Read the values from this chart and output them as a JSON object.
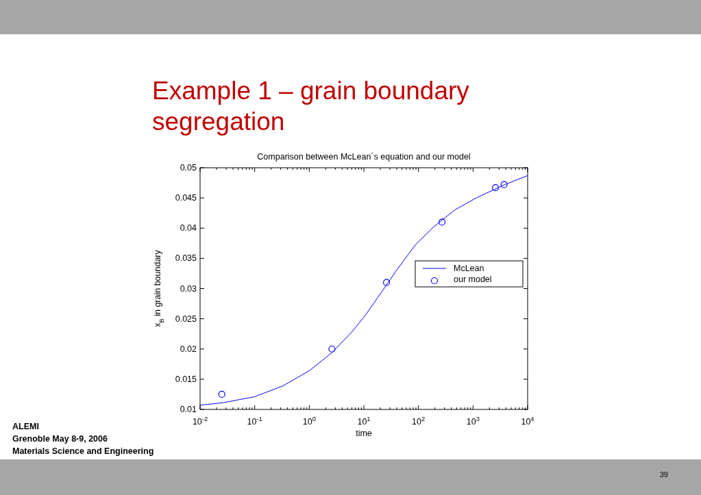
{
  "chart_data": {
    "type": "line",
    "title": "Example 1 – grain boundary segregation",
    "subtitle": "Comparison between McLean´s equation and our model",
    "xlabel": "time",
    "ylabel": "x$_{B}$ in grain boundary",
    "log": "x",
    "xlim": [
      0.01,
      10000
    ],
    "xticks": [
      {
        "value": 0.01,
        "label": "10$^{-2}$"
      },
      {
        "value": 0.1,
        "label": "10$^{-1}$"
      },
      {
        "value": 1,
        "label": "10$^{0}$"
      },
      {
        "value": 10,
        "label": "10$^{1}$"
      },
      {
        "value": 100,
        "label": "10$^{2}$"
      },
      {
        "value": 1000,
        "label": "10$^{3}$"
      },
      {
        "value": 10000,
        "label": "10$^{4}$"
      }
    ],
    "ylim": [
      0.01,
      0.05
    ],
    "yticks": [
      0.01,
      0.015,
      0.02,
      0.025,
      0.03,
      0.035,
      0.04,
      0.045,
      0.05
    ],
    "grid": false,
    "legend": "right",
    "line_style": "solid",
    "series": [
      {
        "name": "McLean",
        "marker": "none",
        "color": "#0000ff",
        "x": [
          0.01,
          0.026,
          0.1,
          0.33,
          1,
          2.6,
          6,
          10.7,
          21,
          41,
          89,
          190,
          460,
          1200,
          3800,
          10000
        ],
        "values": [
          0.0107,
          0.0111,
          0.0121,
          0.0139,
          0.0164,
          0.0194,
          0.0228,
          0.0256,
          0.0294,
          0.0332,
          0.0373,
          0.0402,
          0.043,
          0.0451,
          0.0472,
          0.0487
        ]
      },
      {
        "name": "our model",
        "type": "scatter",
        "marker": "circle",
        "color": "#0000ff",
        "x": [
          0.025,
          2.6,
          26,
          270,
          2570,
          3700
        ],
        "values": [
          0.0125,
          0.02,
          0.031,
          0.041,
          0.0467,
          0.0472
        ]
      }
    ],
    "annotations": [
      "ALEMI",
      "Grenoble May 8-9, 2006",
      "Materials Science and Engineering",
      "39"
    ]
  }
}
